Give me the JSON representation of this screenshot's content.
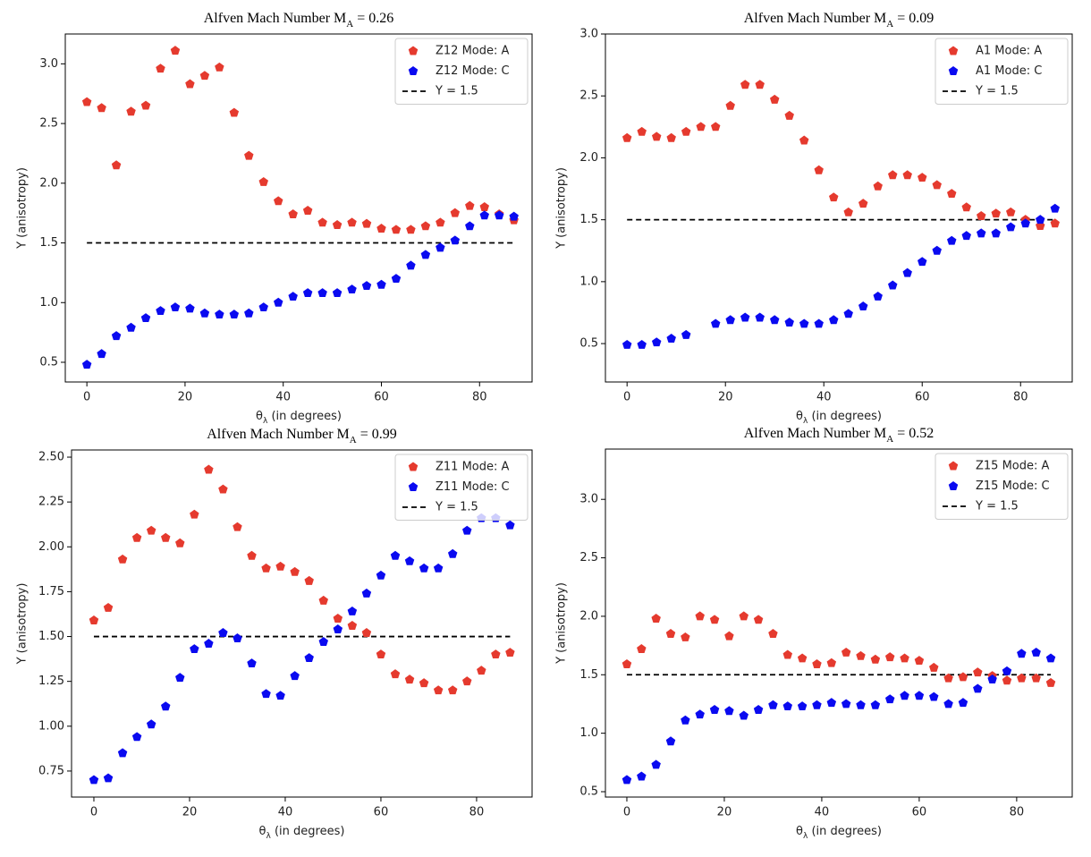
{
  "chart_data": [
    {
      "type": "scatter",
      "title": [
        "Alfven Mach Number M",
        "A",
        " = 0.26"
      ],
      "xlabel": [
        "θ",
        "λ",
        " (in degrees)"
      ],
      "ylabel": "Y (anisotropy)",
      "x": [
        0,
        3,
        6,
        9,
        12,
        15,
        18,
        21,
        24,
        27,
        30,
        33,
        36,
        39,
        42,
        45,
        48,
        51,
        54,
        57,
        60,
        63,
        66,
        69,
        72,
        75,
        78,
        81,
        84,
        87
      ],
      "series": [
        {
          "name": "Z12 Mode: A",
          "color": "#e53a2e",
          "values": [
            2.68,
            2.63,
            2.15,
            2.6,
            2.65,
            2.96,
            3.11,
            2.83,
            2.9,
            2.97,
            2.59,
            2.23,
            2.01,
            1.85,
            1.74,
            1.77,
            1.67,
            1.65,
            1.67,
            1.66,
            1.62,
            1.61,
            1.61,
            1.64,
            1.67,
            1.75,
            1.81,
            1.8,
            1.74,
            1.69
          ]
        },
        {
          "name": "Z12 Mode: C",
          "color": "#0a0af0",
          "values": [
            0.48,
            0.57,
            0.72,
            0.79,
            0.87,
            0.93,
            0.96,
            0.95,
            0.91,
            0.9,
            0.9,
            0.91,
            0.96,
            1.0,
            1.05,
            1.08,
            1.08,
            1.08,
            1.11,
            1.14,
            1.15,
            1.2,
            1.31,
            1.4,
            1.46,
            1.52,
            1.64,
            1.73,
            1.73,
            1.72
          ]
        }
      ],
      "hline": {
        "name": "Y = 1.5",
        "color": "#000000",
        "x": [
          0,
          87
        ],
        "values": [
          1.5,
          1.5
        ]
      },
      "xlim": [
        -4.4,
        90.7
      ],
      "ylim": [
        0.335,
        3.25
      ],
      "xticks": [
        0,
        20,
        40,
        60,
        80
      ],
      "yticks": [
        0.5,
        {
          "value": 1.0,
          "label": "1.0"
        },
        1.5,
        {
          "value": 2.0,
          "label": "2.0"
        },
        2.5,
        {
          "value": 3.0,
          "label": "3.0"
        }
      ],
      "legend": "upper right"
    },
    {
      "type": "scatter",
      "title": [
        "Alfven Mach Number M",
        "A",
        " = 0.09"
      ],
      "xlabel": [
        "θ",
        "λ",
        " (in degrees)"
      ],
      "ylabel": "Y (anisotropy)",
      "x": [
        0,
        3,
        6,
        9,
        12,
        15,
        18,
        21,
        24,
        27,
        30,
        33,
        36,
        39,
        42,
        45,
        48,
        51,
        54,
        57,
        60,
        63,
        66,
        69,
        72,
        75,
        78,
        81,
        84,
        87
      ],
      "series": [
        {
          "name": "A1 Mode: A",
          "color": "#e53a2e",
          "values": [
            2.16,
            2.21,
            2.17,
            2.16,
            2.21,
            2.25,
            2.25,
            2.42,
            2.59,
            2.59,
            2.47,
            2.34,
            2.14,
            1.9,
            1.68,
            1.56,
            1.63,
            1.77,
            1.86,
            1.86,
            1.84,
            1.78,
            1.71,
            1.6,
            1.53,
            1.55,
            1.56,
            1.5,
            1.45,
            1.47
          ]
        },
        {
          "name": "A1 Mode: C",
          "color": "#0a0af0",
          "values": [
            0.49,
            0.49,
            0.51,
            0.54,
            0.57,
            null,
            0.66,
            0.69,
            0.71,
            0.71,
            0.69,
            0.67,
            0.66,
            0.66,
            0.69,
            0.74,
            0.8,
            0.88,
            0.97,
            1.07,
            1.16,
            1.25,
            1.33,
            1.37,
            1.39,
            1.39,
            1.44,
            1.47,
            1.5,
            1.59
          ]
        }
      ],
      "hline": {
        "name": "Y = 1.5",
        "color": "#000000",
        "x": [
          0,
          87
        ],
        "values": [
          1.5,
          1.5
        ]
      },
      "xlim": [
        -4.4,
        90.5
      ],
      "ylim": [
        0.19,
        3.0
      ],
      "xticks": [
        0,
        20,
        40,
        60,
        80
      ],
      "yticks": [
        0.5,
        {
          "value": 1.0,
          "label": "1.0"
        },
        1.5,
        {
          "value": 2.0,
          "label": "2.0"
        },
        2.5,
        {
          "value": 3.0,
          "label": "3.0"
        }
      ],
      "legend": "upper right"
    },
    {
      "type": "scatter",
      "title": [
        "Alfven Mach Number M",
        "A",
        " = 0.99"
      ],
      "xlabel": [
        "θ",
        "λ",
        " (in degrees)"
      ],
      "ylabel": "Y (anisotropy)",
      "x": [
        0,
        3,
        6,
        9,
        12,
        15,
        18,
        21,
        24,
        27,
        30,
        33,
        36,
        39,
        42,
        45,
        48,
        51,
        54,
        57,
        60,
        63,
        66,
        69,
        72,
        75,
        78,
        81,
        84,
        87
      ],
      "series": [
        {
          "name": "Z11 Mode: A",
          "color": "#e53a2e",
          "values": [
            1.59,
            1.66,
            1.93,
            2.05,
            2.09,
            2.05,
            2.02,
            2.18,
            2.43,
            2.32,
            2.11,
            1.95,
            1.88,
            1.89,
            1.86,
            1.81,
            1.7,
            1.6,
            1.56,
            1.52,
            1.4,
            1.29,
            1.26,
            1.24,
            1.2,
            1.2,
            1.25,
            1.31,
            1.4,
            1.41
          ]
        },
        {
          "name": "Z11 Mode: C",
          "color": "#0a0af0",
          "values": [
            0.7,
            0.71,
            0.85,
            0.94,
            1.01,
            1.11,
            1.27,
            1.43,
            1.46,
            1.52,
            1.49,
            1.35,
            1.18,
            1.17,
            1.28,
            1.38,
            1.47,
            1.54,
            1.64,
            1.74,
            1.84,
            1.95,
            1.92,
            1.88,
            1.88,
            1.96,
            2.09,
            2.16,
            2.16,
            2.12
          ]
        }
      ],
      "hline": {
        "name": "Y = 1.5",
        "color": "#000000",
        "x": [
          0,
          87
        ],
        "values": [
          1.5,
          1.5
        ]
      },
      "xlim": [
        -4.67,
        91.6
      ],
      "ylim": [
        0.605,
        2.54
      ],
      "xticks": [
        0,
        20,
        40,
        60,
        80
      ],
      "yticks": [
        {
          "value": 0.75,
          "label": "0.75"
        },
        {
          "value": 1.0,
          "label": "1.00"
        },
        {
          "value": 1.25,
          "label": "1.25"
        },
        {
          "value": 1.5,
          "label": "1.50"
        },
        {
          "value": 1.75,
          "label": "1.75"
        },
        {
          "value": 2.0,
          "label": "2.00"
        },
        {
          "value": 2.25,
          "label": "2.25"
        },
        {
          "value": 2.5,
          "label": "2.50"
        }
      ],
      "legend": "upper right"
    },
    {
      "type": "scatter",
      "title": [
        "Alfven Mach Number M",
        "A",
        " = 0.52"
      ],
      "xlabel": [
        "θ",
        "λ",
        " (in degrees)"
      ],
      "ylabel": "Y (anisotropy)",
      "x": [
        0,
        3,
        6,
        9,
        12,
        15,
        18,
        21,
        24,
        27,
        30,
        33,
        36,
        39,
        42,
        45,
        48,
        51,
        54,
        57,
        60,
        63,
        66,
        69,
        72,
        75,
        78,
        81,
        84,
        87
      ],
      "series": [
        {
          "name": "Z15 Mode: A",
          "color": "#e53a2e",
          "values": [
            1.59,
            1.72,
            1.98,
            1.85,
            1.82,
            2.0,
            1.97,
            1.83,
            2.0,
            1.97,
            1.85,
            1.67,
            1.64,
            1.59,
            1.6,
            1.69,
            1.66,
            1.63,
            1.65,
            1.64,
            1.62,
            1.56,
            1.47,
            1.48,
            1.52,
            1.49,
            1.45,
            1.47,
            1.47,
            1.43
          ]
        },
        {
          "name": "Z15 Mode: C",
          "color": "#0a0af0",
          "values": [
            0.6,
            0.63,
            0.73,
            0.93,
            1.11,
            1.16,
            1.2,
            1.19,
            1.15,
            1.2,
            1.24,
            1.23,
            1.23,
            1.24,
            1.26,
            1.25,
            1.24,
            1.24,
            1.29,
            1.32,
            1.32,
            1.31,
            1.25,
            1.26,
            1.38,
            1.46,
            1.53,
            1.68,
            1.69,
            1.64
          ]
        }
      ],
      "hline": {
        "name": "Y = 1.5",
        "color": "#000000",
        "x": [
          0,
          87
        ],
        "values": [
          1.5,
          1.5
        ]
      },
      "xlim": [
        -4.4,
        91.4
      ],
      "ylim": [
        0.454,
        3.43
      ],
      "xticks": [
        0,
        20,
        40,
        60,
        80
      ],
      "yticks": [
        0.5,
        {
          "value": 1.0,
          "label": "1.0"
        },
        1.5,
        {
          "value": 2.0,
          "label": "2.0"
        },
        2.5,
        {
          "value": 3.0,
          "label": "3.0"
        }
      ],
      "legend": "upper right"
    }
  ]
}
